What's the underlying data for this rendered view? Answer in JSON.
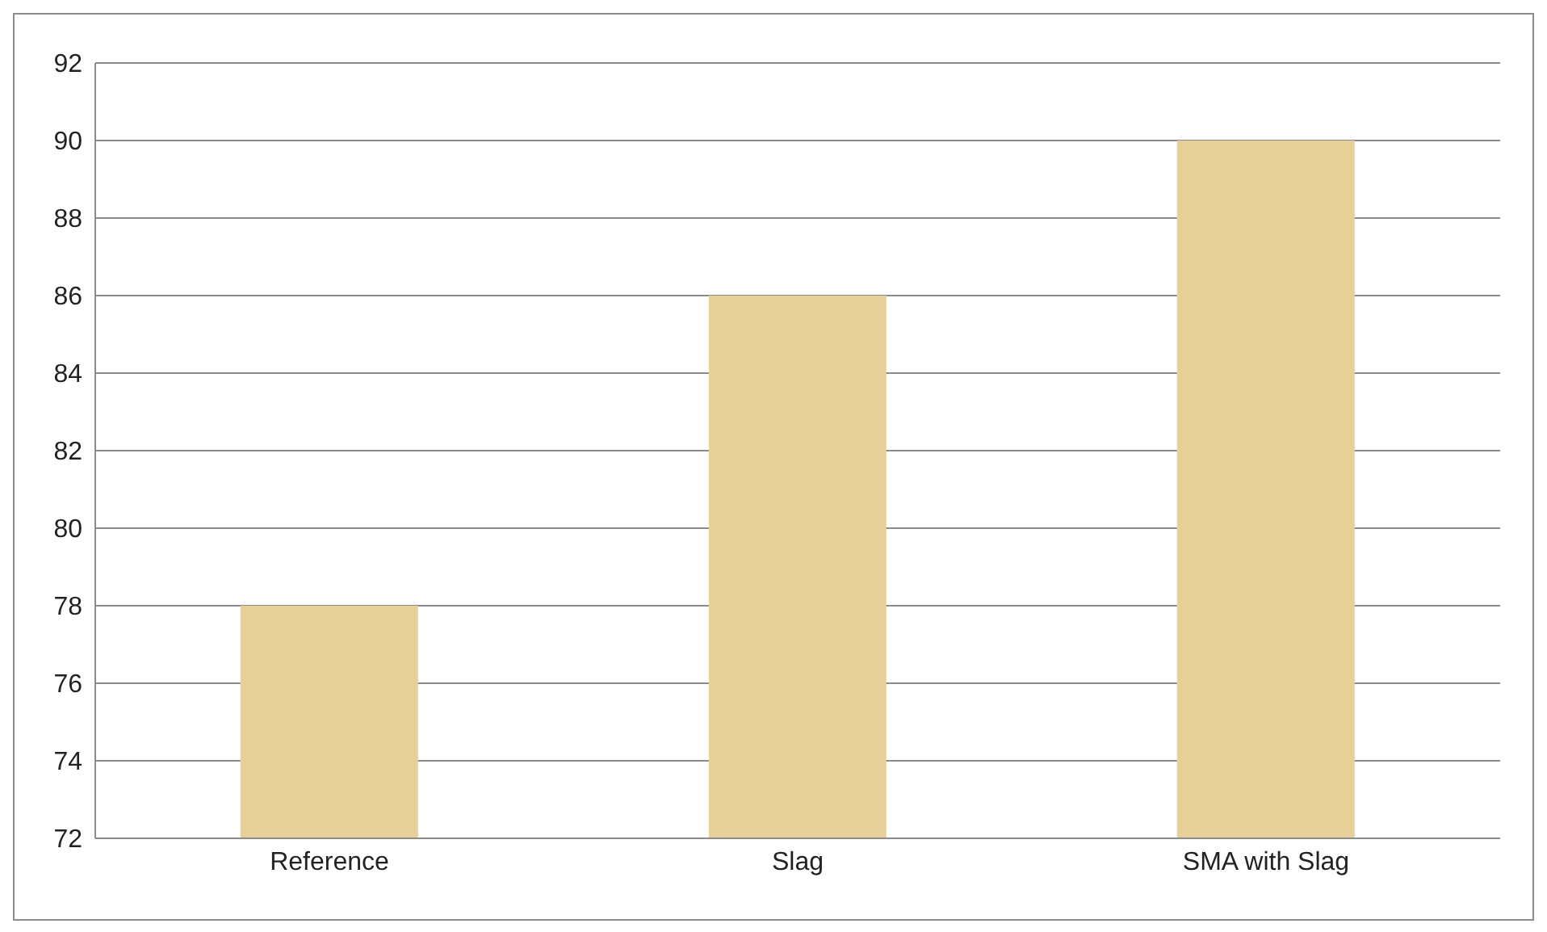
{
  "chart_data": {
    "type": "bar",
    "categories": [
      "Reference",
      "Slag",
      "SMA with Slag"
    ],
    "values": [
      78,
      86,
      90
    ],
    "color": "#e6d09a",
    "ylim": [
      72,
      92
    ],
    "yticks": [
      72,
      74,
      76,
      78,
      80,
      82,
      84,
      86,
      88,
      90,
      92
    ],
    "grid": "y"
  }
}
